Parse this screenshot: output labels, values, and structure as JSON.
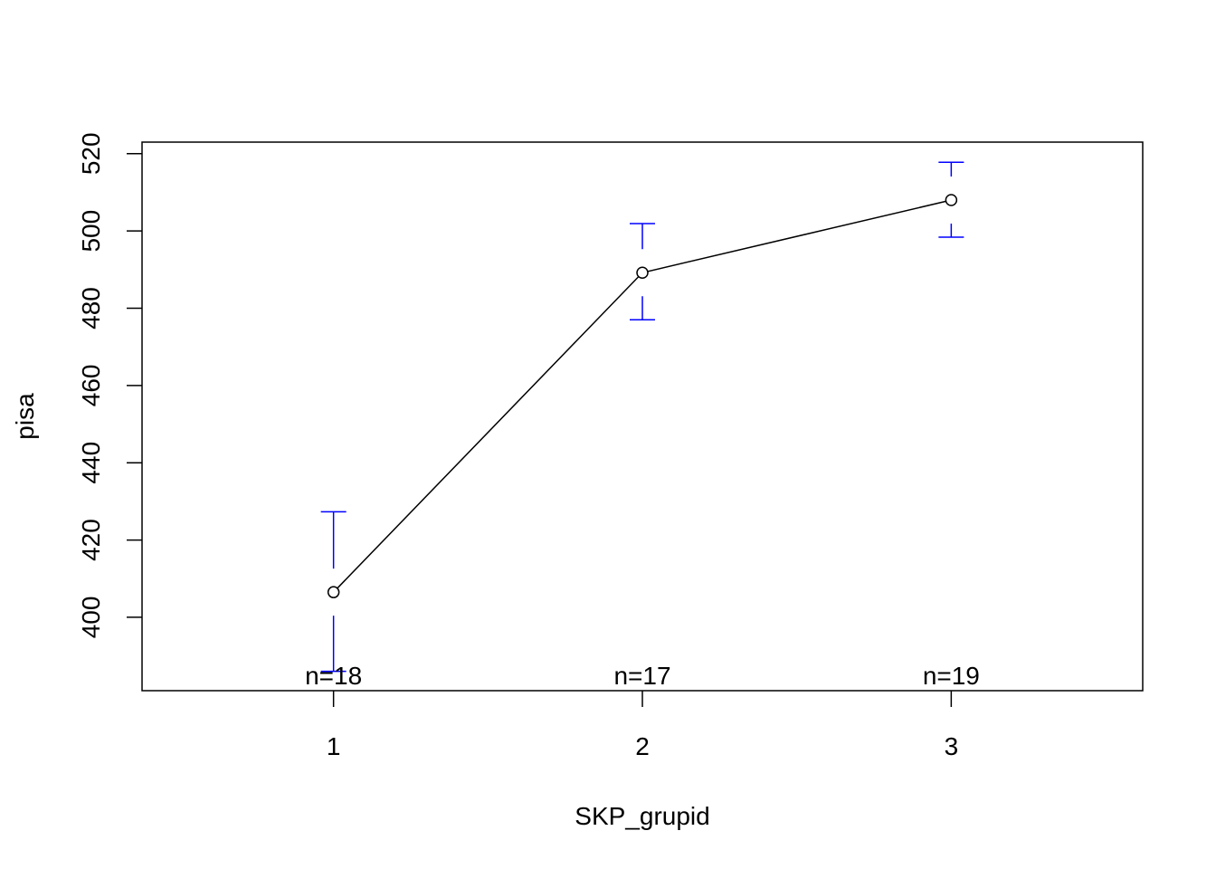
{
  "chart_data": {
    "type": "line",
    "title": "",
    "xlabel": "SKP_grupid",
    "ylabel": "pisa",
    "categories": [
      "1",
      "2",
      "3"
    ],
    "x": [
      1,
      2,
      3
    ],
    "means": [
      406.5,
      489.2,
      508.0
    ],
    "ci_upper": [
      427.3,
      501.9,
      517.8
    ],
    "ci_lower": [
      386.0,
      477.0,
      498.4
    ],
    "n_labels": [
      "n=18",
      "n=17",
      "n=19"
    ],
    "xlim": [
      0.38,
      3.62
    ],
    "ylim": [
      381,
      523
    ],
    "y_ticks": [
      400,
      420,
      440,
      460,
      480,
      500,
      520
    ],
    "x_ticks": [
      1,
      2,
      3
    ],
    "grid": false,
    "line_color": "#000000",
    "errorbar_color": "#0000FF"
  }
}
